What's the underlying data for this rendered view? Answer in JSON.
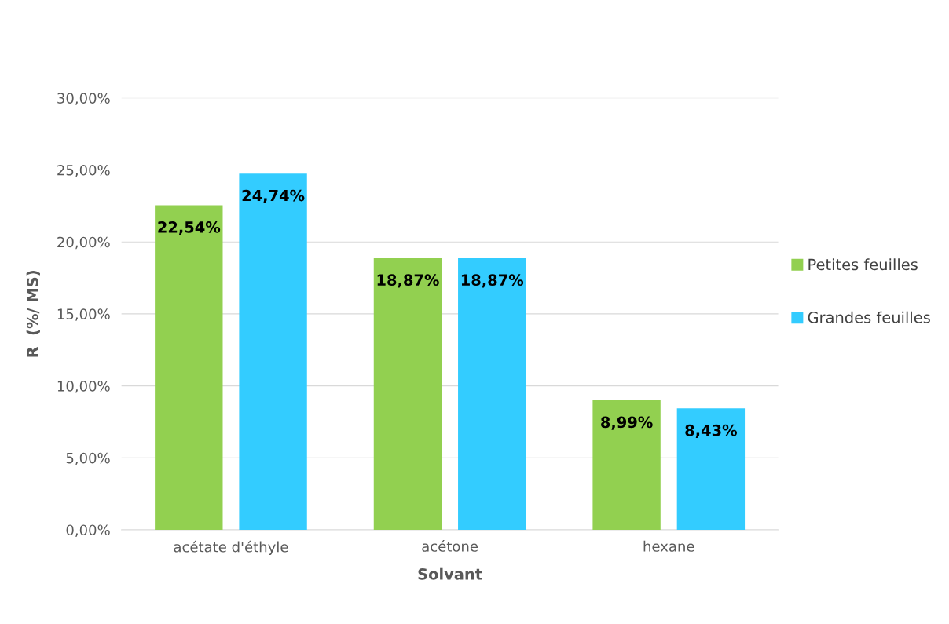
{
  "chart_data": {
    "type": "bar",
    "xlabel": "Solvant",
    "ylabel": "R  (%/ MS)",
    "categories": [
      "acétate d'éthyle",
      "acétone",
      "hexane"
    ],
    "series": [
      {
        "name": "Petites feuilles",
        "color": "#92d050",
        "values": [
          22.54,
          18.87,
          8.99
        ],
        "value_labels": [
          "22,54%",
          "18,87%",
          "8,99%"
        ]
      },
      {
        "name": "Grandes feuilles",
        "color": "#33ccff",
        "values": [
          24.74,
          18.87,
          8.43
        ],
        "value_labels": [
          "24,74%",
          "18,87%",
          "8,43%"
        ]
      }
    ],
    "ylim": [
      0,
      30
    ],
    "yticks": [
      {
        "value": 0,
        "label": "0,00%"
      },
      {
        "value": 5,
        "label": "5,00%"
      },
      {
        "value": 10,
        "label": "10,00%"
      },
      {
        "value": 15,
        "label": "15,00%"
      },
      {
        "value": 20,
        "label": "20,00%"
      },
      {
        "value": 25,
        "label": "25,00%"
      },
      {
        "value": 30,
        "label": "30,00%"
      }
    ],
    "grid": "y",
    "legend": "right"
  }
}
